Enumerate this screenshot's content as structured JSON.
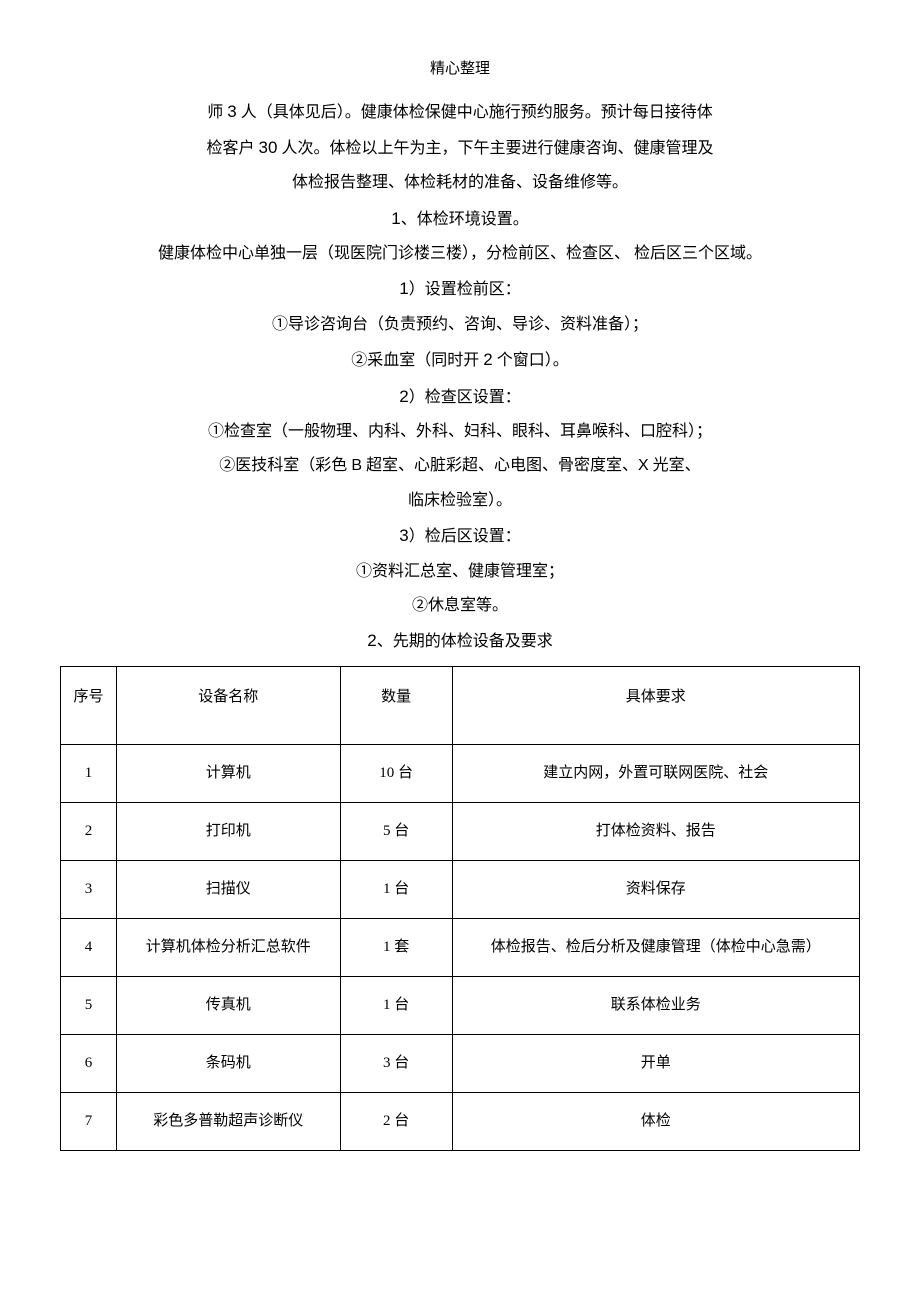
{
  "header": "精心整理",
  "intro": {
    "line1_a": "师 ",
    "line1_num1": "3",
    "line1_b": " 人（具体见后）。健康体检保健中心施行预约服务。预计每日接待体",
    "line2_a": "检客户 ",
    "line2_num": "30",
    "line2_b": " 人次。体检以上午为主，下午主要进行健康咨询、健康管理及",
    "line3": "体检报告整理、体检耗材的准备、设备维修等。"
  },
  "section1": {
    "title_a": "1",
    "title_b": "、体检环境设置。",
    "p1": "健康体检中心单独一层（现医院门诊楼三楼），分检前区、检查区、 检后区三个区域。",
    "s1_title_a": "1",
    "s1_title_b": "）设置检前区：",
    "s1_l1": "①导诊咨询台（负责预约、咨询、导诊、资料准备）；",
    "s1_l2_a": "②采血室（同时开 ",
    "s1_l2_num": "2",
    "s1_l2_b": " 个窗口）。",
    "s2_title_a": "2",
    "s2_title_b": "）检查区设置：",
    "s2_l1": "①检查室（一般物理、内科、外科、妇科、眼科、耳鼻喉科、口腔科）；",
    "s2_l2_a": "②医技科室（彩色 ",
    "s2_l2_b": "B",
    "s2_l2_c": " 超室、心脏彩超、心电图、骨密度室、",
    "s2_l2_x": "X",
    "s2_l2_d": " 光室、",
    "s2_l3": "临床检验室）。",
    "s3_title_a": "3",
    "s3_title_b": "）检后区设置：",
    "s3_l1": "①资料汇总室、健康管理室；",
    "s3_l2": "②休息室等。"
  },
  "section2": {
    "title_a": "2",
    "title_b": "、先期的体检设备及要求"
  },
  "table": {
    "headers": {
      "c1": "序号",
      "c2": "设备名称",
      "c3": "数量",
      "c4": "具体要求"
    },
    "rows": [
      {
        "seq": "1",
        "name": "计算机",
        "qty": "10 台",
        "req": "建立内网，外置可联网医院、社会"
      },
      {
        "seq": "2",
        "name": "打印机",
        "qty": "5 台",
        "req": "打体检资料、报告"
      },
      {
        "seq": "3",
        "name": "扫描仪",
        "qty": "1 台",
        "req": "资料保存"
      },
      {
        "seq": "4",
        "name": "计算机体检分析汇总软件",
        "qty": "1 套",
        "req": "体检报告、检后分析及健康管理（体检中心急需）"
      },
      {
        "seq": "5",
        "name": "传真机",
        "qty": "1 台",
        "req": "联系体检业务"
      },
      {
        "seq": "6",
        "name": "条码机",
        "qty": "3 台",
        "req": "开单"
      },
      {
        "seq": "7",
        "name": "彩色多普勒超声诊断仪",
        "qty": "2 台",
        "req": "体检"
      }
    ]
  }
}
